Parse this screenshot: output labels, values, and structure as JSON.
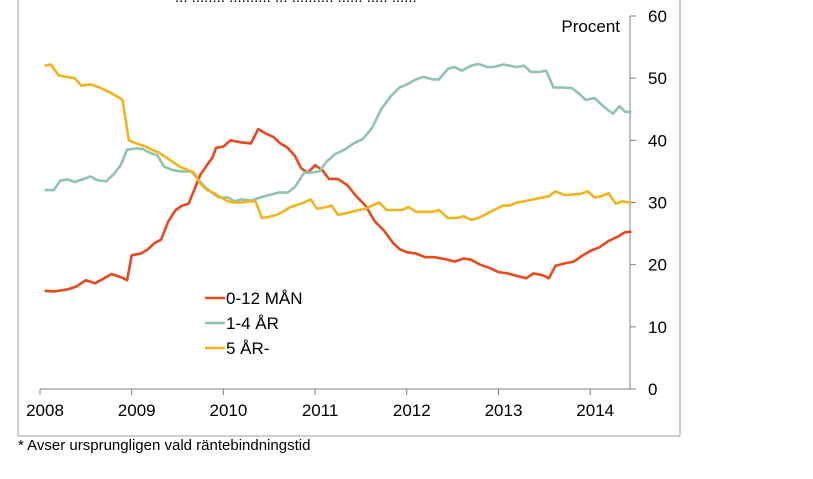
{
  "chart_data": {
    "type": "line",
    "top_cut_text": "... ........ .......... ... .......... ...... ..... ......",
    "ylabel": "Procent",
    "ylim": [
      0,
      60
    ],
    "yticks": [
      0,
      10,
      20,
      30,
      40,
      50,
      60
    ],
    "xlim": [
      2008,
      2014.45
    ],
    "xticks": [
      {
        "value": 2008,
        "label": "2008"
      },
      {
        "value": 2009,
        "label": "2009"
      },
      {
        "value": 2010,
        "label": "2010"
      },
      {
        "value": 2011,
        "label": "2011"
      },
      {
        "value": 2012,
        "label": "2012"
      },
      {
        "value": 2013,
        "label": "2013"
      },
      {
        "value": 2014,
        "label": "2014"
      }
    ],
    "grid": false,
    "legend_position": "lower-left",
    "series": [
      {
        "name": "0-12 MÅN",
        "color": "#e8491d",
        "points": [
          [
            2008.05,
            15.8
          ],
          [
            2008.15,
            15.7
          ],
          [
            2008.3,
            16.0
          ],
          [
            2008.4,
            16.5
          ],
          [
            2008.5,
            17.5
          ],
          [
            2008.6,
            17.0
          ],
          [
            2008.7,
            17.8
          ],
          [
            2008.78,
            18.5
          ],
          [
            2008.88,
            18.0
          ],
          [
            2008.95,
            17.5
          ],
          [
            2009.0,
            21.5
          ],
          [
            2009.1,
            21.8
          ],
          [
            2009.18,
            22.5
          ],
          [
            2009.25,
            23.5
          ],
          [
            2009.32,
            24.0
          ],
          [
            2009.4,
            27.0
          ],
          [
            2009.48,
            28.8
          ],
          [
            2009.55,
            29.5
          ],
          [
            2009.62,
            29.8
          ],
          [
            2009.68,
            32.0
          ],
          [
            2009.75,
            34.5
          ],
          [
            2009.82,
            36.0
          ],
          [
            2009.88,
            37.2
          ],
          [
            2009.92,
            38.8
          ],
          [
            2010.0,
            39.0
          ],
          [
            2010.08,
            40.0
          ],
          [
            2010.18,
            39.7
          ],
          [
            2010.3,
            39.5
          ],
          [
            2010.38,
            41.8
          ],
          [
            2010.45,
            41.2
          ],
          [
            2010.55,
            40.5
          ],
          [
            2010.62,
            39.5
          ],
          [
            2010.7,
            38.8
          ],
          [
            2010.78,
            37.5
          ],
          [
            2010.85,
            35.5
          ],
          [
            2010.92,
            34.8
          ],
          [
            2011.0,
            36.0
          ],
          [
            2011.08,
            35.2
          ],
          [
            2011.15,
            33.8
          ],
          [
            2011.25,
            33.8
          ],
          [
            2011.35,
            32.8
          ],
          [
            2011.45,
            31.0
          ],
          [
            2011.55,
            29.5
          ],
          [
            2011.65,
            27.0
          ],
          [
            2011.75,
            25.5
          ],
          [
            2011.85,
            23.5
          ],
          [
            2011.92,
            22.5
          ],
          [
            2012.0,
            22.0
          ],
          [
            2012.1,
            21.8
          ],
          [
            2012.2,
            21.2
          ],
          [
            2012.3,
            21.2
          ],
          [
            2012.42,
            20.9
          ],
          [
            2012.52,
            20.5
          ],
          [
            2012.62,
            21.0
          ],
          [
            2012.7,
            20.8
          ],
          [
            2012.8,
            20.0
          ],
          [
            2012.9,
            19.5
          ],
          [
            2013.0,
            18.8
          ],
          [
            2013.1,
            18.6
          ],
          [
            2013.2,
            18.2
          ],
          [
            2013.3,
            17.8
          ],
          [
            2013.38,
            18.6
          ],
          [
            2013.48,
            18.3
          ],
          [
            2013.55,
            17.8
          ],
          [
            2013.62,
            19.8
          ],
          [
            2013.72,
            20.2
          ],
          [
            2013.82,
            20.5
          ],
          [
            2013.92,
            21.5
          ],
          [
            2014.0,
            22.2
          ],
          [
            2014.1,
            22.8
          ],
          [
            2014.2,
            23.8
          ],
          [
            2014.3,
            24.5
          ],
          [
            2014.38,
            25.2
          ],
          [
            2014.45,
            25.3
          ]
        ]
      },
      {
        "name": "1-4 ÅR",
        "color": "#8fc4ad",
        "points": [
          [
            2008.05,
            32.0
          ],
          [
            2008.15,
            32.0
          ],
          [
            2008.22,
            33.5
          ],
          [
            2008.3,
            33.7
          ],
          [
            2008.38,
            33.3
          ],
          [
            2008.48,
            33.8
          ],
          [
            2008.55,
            34.2
          ],
          [
            2008.62,
            33.6
          ],
          [
            2008.72,
            33.4
          ],
          [
            2008.8,
            34.5
          ],
          [
            2008.88,
            36.0
          ],
          [
            2008.95,
            38.5
          ],
          [
            2009.05,
            38.7
          ],
          [
            2009.12,
            38.6
          ],
          [
            2009.2,
            38.0
          ],
          [
            2009.28,
            37.6
          ],
          [
            2009.35,
            35.8
          ],
          [
            2009.45,
            35.2
          ],
          [
            2009.55,
            35.0
          ],
          [
            2009.65,
            35.0
          ],
          [
            2009.72,
            33.8
          ],
          [
            2009.8,
            32.5
          ],
          [
            2009.88,
            31.5
          ],
          [
            2009.95,
            30.8
          ],
          [
            2010.05,
            30.8
          ],
          [
            2010.12,
            30.2
          ],
          [
            2010.2,
            30.5
          ],
          [
            2010.3,
            30.3
          ],
          [
            2010.4,
            30.8
          ],
          [
            2010.5,
            31.2
          ],
          [
            2010.6,
            31.6
          ],
          [
            2010.7,
            31.6
          ],
          [
            2010.78,
            32.5
          ],
          [
            2010.88,
            34.8
          ],
          [
            2010.95,
            34.8
          ],
          [
            2011.05,
            35.0
          ],
          [
            2011.12,
            36.5
          ],
          [
            2011.22,
            37.8
          ],
          [
            2011.32,
            38.5
          ],
          [
            2011.42,
            39.5
          ],
          [
            2011.52,
            40.2
          ],
          [
            2011.62,
            42.0
          ],
          [
            2011.72,
            45.0
          ],
          [
            2011.82,
            47.0
          ],
          [
            2011.92,
            48.5
          ],
          [
            2012.0,
            49.0
          ],
          [
            2012.1,
            49.8
          ],
          [
            2012.18,
            50.2
          ],
          [
            2012.28,
            49.8
          ],
          [
            2012.35,
            49.8
          ],
          [
            2012.45,
            51.5
          ],
          [
            2012.52,
            51.8
          ],
          [
            2012.6,
            51.2
          ],
          [
            2012.7,
            52.0
          ],
          [
            2012.78,
            52.3
          ],
          [
            2012.88,
            51.8
          ],
          [
            2012.95,
            51.8
          ],
          [
            2013.05,
            52.2
          ],
          [
            2013.12,
            52.0
          ],
          [
            2013.2,
            51.8
          ],
          [
            2013.28,
            52.0
          ],
          [
            2013.35,
            51.0
          ],
          [
            2013.45,
            51.0
          ],
          [
            2013.52,
            51.2
          ],
          [
            2013.6,
            48.5
          ],
          [
            2013.7,
            48.5
          ],
          [
            2013.8,
            48.4
          ],
          [
            2013.88,
            47.5
          ],
          [
            2013.95,
            46.5
          ],
          [
            2014.05,
            46.8
          ],
          [
            2014.12,
            45.8
          ],
          [
            2014.2,
            44.8
          ],
          [
            2014.25,
            44.3
          ],
          [
            2014.32,
            45.5
          ],
          [
            2014.38,
            44.6
          ],
          [
            2014.45,
            44.5
          ]
        ]
      },
      {
        "name": "5 ÅR-",
        "color": "#f2b41c",
        "points": [
          [
            2008.05,
            52.0
          ],
          [
            2008.12,
            52.2
          ],
          [
            2008.2,
            50.5
          ],
          [
            2008.28,
            50.2
          ],
          [
            2008.38,
            50.0
          ],
          [
            2008.45,
            48.8
          ],
          [
            2008.55,
            49.0
          ],
          [
            2008.65,
            48.5
          ],
          [
            2008.75,
            47.8
          ],
          [
            2008.85,
            47.0
          ],
          [
            2008.9,
            46.5
          ],
          [
            2008.97,
            40.0
          ],
          [
            2009.05,
            39.5
          ],
          [
            2009.15,
            39.0
          ],
          [
            2009.22,
            38.5
          ],
          [
            2009.3,
            38.0
          ],
          [
            2009.38,
            37.2
          ],
          [
            2009.45,
            36.5
          ],
          [
            2009.52,
            35.8
          ],
          [
            2009.6,
            35.3
          ],
          [
            2009.68,
            34.8
          ],
          [
            2009.75,
            33.0
          ],
          [
            2009.82,
            32.0
          ],
          [
            2009.9,
            31.5
          ],
          [
            2009.97,
            30.8
          ],
          [
            2010.05,
            30.2
          ],
          [
            2010.12,
            30.0
          ],
          [
            2010.2,
            30.0
          ],
          [
            2010.28,
            30.2
          ],
          [
            2010.35,
            30.2
          ],
          [
            2010.42,
            27.5
          ],
          [
            2010.5,
            27.7
          ],
          [
            2010.58,
            28.0
          ],
          [
            2010.65,
            28.5
          ],
          [
            2010.72,
            29.2
          ],
          [
            2010.8,
            29.6
          ],
          [
            2010.88,
            30.0
          ],
          [
            2010.95,
            30.5
          ],
          [
            2011.02,
            29.0
          ],
          [
            2011.1,
            29.2
          ],
          [
            2011.18,
            29.5
          ],
          [
            2011.25,
            28.0
          ],
          [
            2011.32,
            28.2
          ],
          [
            2011.4,
            28.5
          ],
          [
            2011.48,
            28.8
          ],
          [
            2011.55,
            29.0
          ],
          [
            2011.62,
            29.5
          ],
          [
            2011.7,
            30.0
          ],
          [
            2011.78,
            28.8
          ],
          [
            2011.88,
            28.8
          ],
          [
            2011.95,
            28.8
          ],
          [
            2012.02,
            29.3
          ],
          [
            2012.1,
            28.5
          ],
          [
            2012.2,
            28.5
          ],
          [
            2012.28,
            28.5
          ],
          [
            2012.35,
            28.8
          ],
          [
            2012.45,
            27.5
          ],
          [
            2012.55,
            27.5
          ],
          [
            2012.62,
            27.8
          ],
          [
            2012.7,
            27.2
          ],
          [
            2012.78,
            27.5
          ],
          [
            2012.85,
            28.0
          ],
          [
            2012.95,
            28.8
          ],
          [
            2013.05,
            29.5
          ],
          [
            2013.12,
            29.5
          ],
          [
            2013.2,
            30.0
          ],
          [
            2013.28,
            30.2
          ],
          [
            2013.38,
            30.5
          ],
          [
            2013.48,
            30.8
          ],
          [
            2013.55,
            31.0
          ],
          [
            2013.62,
            31.8
          ],
          [
            2013.72,
            31.2
          ],
          [
            2013.82,
            31.3
          ],
          [
            2013.9,
            31.4
          ],
          [
            2013.97,
            31.8
          ],
          [
            2014.05,
            30.8
          ],
          [
            2014.12,
            31.0
          ],
          [
            2014.2,
            31.5
          ],
          [
            2014.28,
            29.8
          ],
          [
            2014.35,
            30.2
          ],
          [
            2014.42,
            30.0
          ],
          [
            2014.45,
            30.0
          ]
        ]
      }
    ]
  },
  "footnote": "* Avser ursprungligen vald räntebindningstid"
}
